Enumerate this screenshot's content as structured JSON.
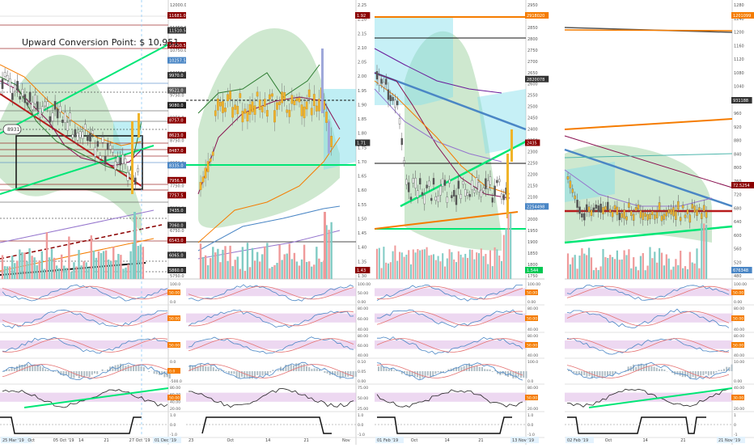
{
  "annotation": {
    "text": "Upward Conversion Point: $ 10,951"
  },
  "panels": [
    {
      "id": "p1",
      "price_axis_labels": [
        "12000.0",
        "11250.0",
        "10750.0",
        "10250.0",
        "9750.0",
        "9250.0",
        "8750.0",
        "8250.0",
        "7750.0",
        "7250.0",
        "6750.0",
        "6250.0",
        "5750.0"
      ],
      "badges": [
        "11681.0",
        "11510.5",
        "10950.5",
        "10257.5",
        "9970.0",
        "9521.0",
        "9080.0",
        "8757.0",
        "8623.0",
        "8487.0",
        "8335.0",
        "7956.5",
        "7757.5",
        "7435.0",
        "7060.0",
        "6543.0",
        "6065.0",
        "5860.0"
      ],
      "bubble": "8931",
      "date_labels": [
        "25 Mar '19 ",
        "Oct",
        "05 Oct '19",
        "14",
        "21",
        "27 Oct '19",
        "01 Dec '19"
      ],
      "osc_labels": [
        [
          "100.0",
          "50.0",
          "0.0"
        ],
        [
          "",
          "50.00",
          ""
        ],
        [
          "",
          "50.00",
          ""
        ],
        [
          "0.0",
          "-500.0"
        ],
        [
          "80.00",
          "60.00",
          "40.00",
          "20.00"
        ],
        [
          "1.0",
          "0.0",
          "-1.0"
        ]
      ],
      "osc_badges": [
        "50.00",
        "50.00",
        "50.00",
        "0.0",
        "50.00",
        ""
      ]
    },
    {
      "id": "p2",
      "price_axis_labels": [
        "2.25",
        "2.20",
        "2.15",
        "2.10",
        "2.05",
        "2.00",
        "1.95",
        "1.90",
        "1.85",
        "1.80",
        "1.75",
        "1.70",
        "1.65",
        "1.60",
        "1.55",
        "1.50",
        "1.45",
        "1.40",
        "1.35",
        "1.30"
      ],
      "badges": [
        "1.92",
        "1.71",
        "1.43"
      ],
      "date_labels": [
        "23",
        "Oct",
        "14",
        "21",
        "Nov"
      ],
      "osc_labels": [
        [
          "100.00",
          "50.00",
          "0.00"
        ],
        [
          "80.00",
          "60.00",
          "40.00"
        ],
        [
          "80.00",
          "60.00",
          "40.00"
        ],
        [
          "0.10",
          "0.05",
          "0.00"
        ],
        [
          "75.00",
          "50.00",
          "25.00"
        ],
        [
          "1.0",
          "0.0",
          "-1.0"
        ]
      ],
      "osc_badges": [
        "",
        "",
        "",
        "",
        "",
        ""
      ]
    },
    {
      "id": "p3",
      "price_axis_labels": [
        "2950",
        "2900",
        "2850",
        "2800",
        "2750",
        "2700",
        "2650",
        "2600",
        "2550",
        "2500",
        "2450",
        "2400",
        "2350",
        "2300",
        "2250",
        "2200",
        "2150",
        "2100",
        "2050",
        "2000",
        "1950",
        "1900",
        "1850",
        "1800",
        "1750"
      ],
      "badges": [
        "2918020",
        "2820078",
        "2435",
        "2254498",
        "1.544"
      ],
      "date_labels": [
        "01 Feb '19",
        "Oct",
        "14",
        "21",
        "13 Nov '19"
      ],
      "osc_labels": [
        [
          "100.00",
          "50.00",
          "0.00"
        ],
        [
          "80.00",
          "60.00",
          "40.00"
        ],
        [
          "80.00",
          "60.00",
          "40.00"
        ],
        [
          "100.0",
          "0.0"
        ],
        [
          "80.00",
          "60.00",
          "20.00"
        ],
        [
          "1.0",
          "0.0",
          "-1.0"
        ]
      ],
      "osc_badges": [
        "50.00",
        "50.00",
        "50.00",
        "",
        "50.00",
        ""
      ]
    },
    {
      "id": "p4",
      "price_axis_labels": [
        "1280",
        "1240",
        "1200",
        "1160",
        "1120",
        "1080",
        "1040",
        "1000",
        "960",
        "920",
        "880",
        "840",
        "800",
        "760",
        "720",
        "680",
        "640",
        "600",
        "560",
        "520",
        "480"
      ],
      "badges": [
        "1201099",
        "931188",
        "72.5254",
        "676348"
      ],
      "date_labels": [
        "02 Feb '19",
        "Oct",
        "14",
        "21",
        "21 Nov '19"
      ],
      "osc_labels": [
        [
          "100.00",
          "50.00",
          "0.00"
        ],
        [
          "80.00",
          "60.00",
          "40.00"
        ],
        [
          "80.00",
          "60.00",
          "40.00"
        ],
        [
          "10.00",
          "0.00"
        ],
        [
          "40.00",
          "20.00"
        ],
        [
          "1",
          "0",
          "-1"
        ]
      ],
      "osc_badges": [
        "50.00",
        "50.00",
        "50.00",
        "",
        "30.00",
        ""
      ]
    }
  ],
  "colors": {
    "green_cloud": "#a5d6a7",
    "cyan_cloud": "#80deea",
    "oscillator_band": "#e1bee7",
    "candle_up": "#f0b429",
    "volume_red": "#ef9a9a",
    "volume_green": "#80cbc4",
    "trend_green": "#00e676",
    "trend_red": "#b71c1c",
    "line_blue": "#4a86c5",
    "line_orange": "#f57c00",
    "line_maroon": "#880e4f"
  },
  "chart_data": {
    "type": "line",
    "title": "",
    "note": "Multi-panel crypto price chart with Ichimoku-style clouds, volume bars and oscillators",
    "series": []
  }
}
